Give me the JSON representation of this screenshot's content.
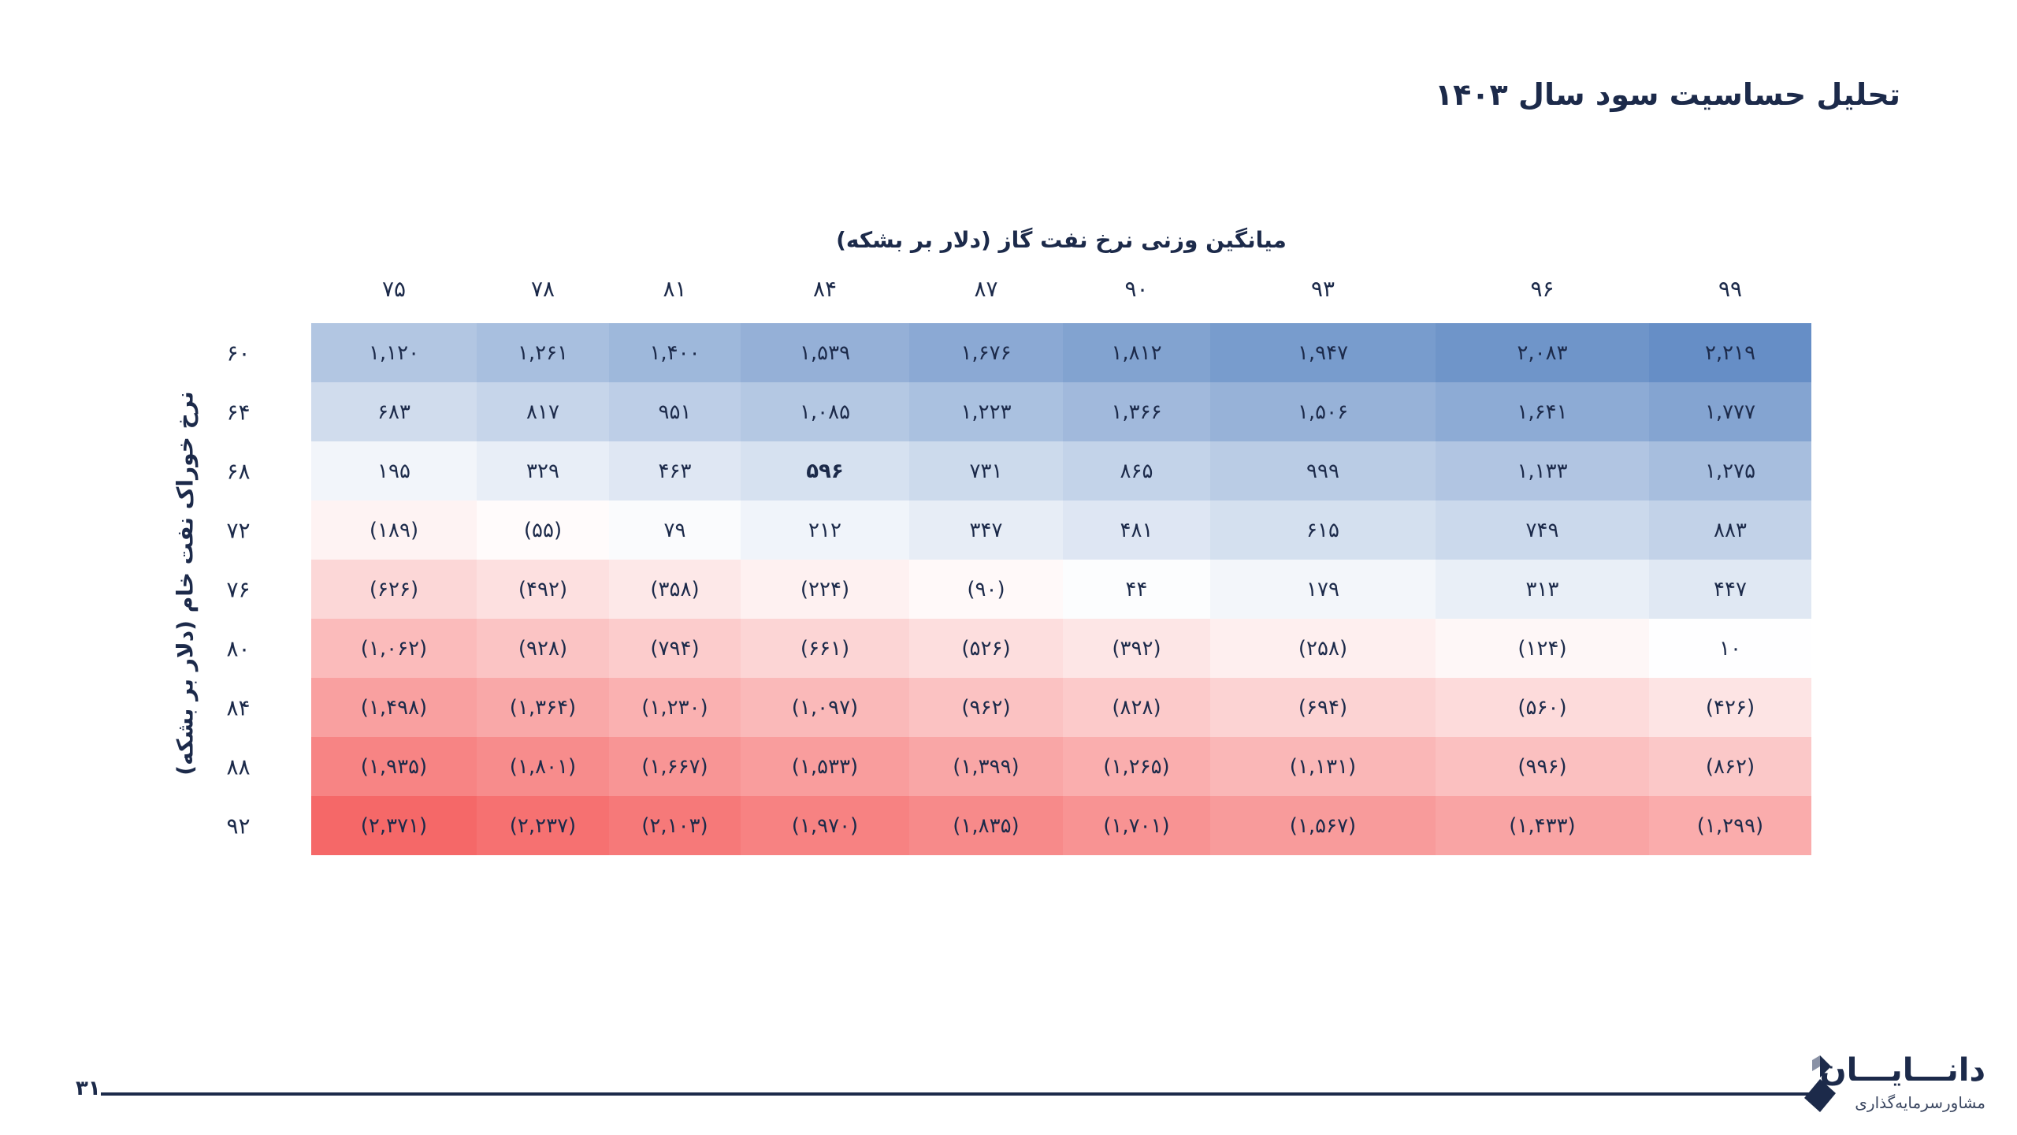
{
  "page": {
    "title": "تحلیل حساسیت سود سال ۱۴۰۳",
    "page_number": "۳۱"
  },
  "logo": {
    "name": "دانـــایـــان",
    "tagline": "مشاورسرمایه‌گذاری"
  },
  "chart_data": {
    "type": "heatmap",
    "xlabel": "میانگین وزنی نرخ نفت گاز (دلار بر بشکه)",
    "ylabel": "نرخ خوراک نفت خام (دلار بر بشکه)",
    "x_labels": [
      "۷۵",
      "۷۸",
      "۸۱",
      "۸۴",
      "۸۷",
      "۹۰",
      "۹۳",
      "۹۶",
      "۹۹"
    ],
    "y_labels": [
      "۶۰",
      "۶۴",
      "۶۸",
      "۷۲",
      "۷۶",
      "۸۰",
      "۸۴",
      "۸۸",
      "۹۲"
    ],
    "x": [
      75,
      78,
      81,
      84,
      87,
      90,
      93,
      96,
      99
    ],
    "y": [
      60,
      64,
      68,
      72,
      76,
      80,
      84,
      88,
      92
    ],
    "values": [
      [
        1120,
        1261,
        1400,
        1539,
        1676,
        1812,
        1947,
        2083,
        2219
      ],
      [
        683,
        817,
        951,
        1085,
        1223,
        1366,
        1506,
        1641,
        1777
      ],
      [
        195,
        329,
        463,
        596,
        731,
        865,
        999,
        1133,
        1275
      ],
      [
        -189,
        -55,
        79,
        212,
        347,
        481,
        615,
        749,
        883
      ],
      [
        -626,
        -492,
        -358,
        -224,
        -90,
        44,
        179,
        313,
        447
      ],
      [
        -1062,
        -928,
        -794,
        -661,
        -526,
        -392,
        -258,
        -124,
        10
      ],
      [
        -1498,
        -1364,
        -1230,
        -1097,
        -962,
        -828,
        -694,
        -560,
        -426
      ],
      [
        -1935,
        -1801,
        -1667,
        -1533,
        -1399,
        -1265,
        -1131,
        -996,
        -862
      ],
      [
        -2371,
        -2237,
        -2103,
        -1970,
        -1835,
        -1701,
        -1567,
        -1433,
        -1299
      ]
    ],
    "value_labels": [
      [
        "۱,۱۲۰",
        "۱,۲۶۱",
        "۱,۴۰۰",
        "۱,۵۳۹",
        "۱,۶۷۶",
        "۱,۸۱۲",
        "۱,۹۴۷",
        "۲,۰۸۳",
        "۲,۲۱۹"
      ],
      [
        "۶۸۳",
        "۸۱۷",
        "۹۵۱",
        "۱,۰۸۵",
        "۱,۲۲۳",
        "۱,۳۶۶",
        "۱,۵۰۶",
        "۱,۶۴۱",
        "۱,۷۷۷"
      ],
      [
        "۱۹۵",
        "۳۲۹",
        "۴۶۳",
        "۵۹۶",
        "۷۳۱",
        "۸۶۵",
        "۹۹۹",
        "۱,۱۳۳",
        "۱,۲۷۵"
      ],
      [
        "(۱۸۹)",
        "(۵۵)",
        "۷۹",
        "۲۱۲",
        "۳۴۷",
        "۴۸۱",
        "۶۱۵",
        "۷۴۹",
        "۸۸۳"
      ],
      [
        "(۶۲۶)",
        "(۴۹۲)",
        "(۳۵۸)",
        "(۲۲۴)",
        "(۹۰)",
        "۴۴",
        "۱۷۹",
        "۳۱۳",
        "۴۴۷"
      ],
      [
        "(۱,۰۶۲)",
        "(۹۲۸)",
        "(۷۹۴)",
        "(۶۶۱)",
        "(۵۲۶)",
        "(۳۹۲)",
        "(۲۵۸)",
        "(۱۲۴)",
        "۱۰"
      ],
      [
        "(۱,۴۹۸)",
        "(۱,۳۶۴)",
        "(۱,۲۳۰)",
        "(۱,۰۹۷)",
        "(۹۶۲)",
        "(۸۲۸)",
        "(۶۹۴)",
        "(۵۶۰)",
        "(۴۲۶)"
      ],
      [
        "(۱,۹۳۵)",
        "(۱,۸۰۱)",
        "(۱,۶۶۷)",
        "(۱,۵۳۳)",
        "(۱,۳۹۹)",
        "(۱,۲۶۵)",
        "(۱,۱۳۱)",
        "(۹۹۶)",
        "(۸۶۲)"
      ],
      [
        "(۲,۳۷۱)",
        "(۲,۲۳۷)",
        "(۲,۱۰۳)",
        "(۱,۹۷۰)",
        "(۱,۸۳۵)",
        "(۱,۷۰۱)",
        "(۱,۵۶۷)",
        "(۱,۴۳۳)",
        "(۱,۲۹۹)"
      ]
    ],
    "highlight_cell": [
      2,
      3
    ],
    "colors": {
      "positive": "#5b86c2",
      "neutral": "#ffffff",
      "negative": "#f56868"
    }
  }
}
